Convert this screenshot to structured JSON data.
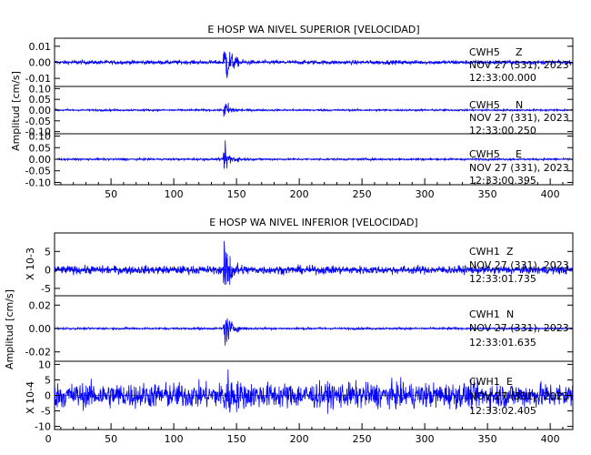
{
  "chart_data": [
    {
      "type": "line",
      "title": "E HOSP WA NIVEL SUPERIOR [VELOCIDAD]",
      "ylabel": "Amplitud [cm/s]",
      "xlabel": "",
      "xlim": [
        5,
        418
      ],
      "x_ticks": [
        "50",
        "100",
        "150",
        "200",
        "250",
        "300",
        "350",
        "400"
      ],
      "event_time_x": 140,
      "panels": [
        {
          "station": "CWH5",
          "component": "Z",
          "date": "NOV 27 (331), 2023",
          "start_time": "12:33:00.000",
          "ylim": [
            -0.015,
            0.015
          ],
          "y_ticks": [
            "0.01",
            "0.00",
            "-0.01"
          ],
          "y_tick_values": [
            0.01,
            0.0,
            -0.01
          ],
          "noise_amplitude": 0.0011,
          "peak_amplitude": 0.017,
          "color": "#0000ff"
        },
        {
          "station": "CWH5",
          "component": "N",
          "date": "NOV 27 (331), 2023",
          "start_time": "12:33:00.250",
          "ylim": [
            -0.11,
            0.11
          ],
          "y_ticks": [
            "0.10",
            "0.05",
            "0.00",
            "-0.05",
            "-0.10"
          ],
          "y_tick_values": [
            0.1,
            0.05,
            0.0,
            -0.05,
            -0.1
          ],
          "noise_amplitude": 0.004,
          "peak_amplitude": 0.05,
          "color": "#0000ff"
        },
        {
          "station": "CWH5",
          "component": "E",
          "date": "NOV 27 (331), 2023",
          "start_time": "12:33:00.395",
          "ylim": [
            -0.11,
            0.11
          ],
          "y_ticks": [
            "0.10",
            "0.05",
            "0.00",
            "-0.05",
            "-0.10"
          ],
          "y_tick_values": [
            0.1,
            0.05,
            0.0,
            -0.05,
            -0.1
          ],
          "noise_amplitude": 0.004,
          "peak_amplitude": 0.065,
          "color": "#0000ff"
        }
      ]
    },
    {
      "type": "line",
      "title": "E HOSP WA NIVEL INFERIOR [VELOCIDAD]",
      "ylabel": "Amplitud [cm/s]",
      "xlabel": "",
      "xlim": [
        5,
        418
      ],
      "x_ticks": [
        "0",
        "50",
        "100",
        "150",
        "200",
        "250",
        "300",
        "350",
        "400"
      ],
      "event_time_x": 140,
      "panels": [
        {
          "station": "CWH1",
          "component": "Z",
          "date": "NOV 27 (331), 2023",
          "start_time": "12:33:01.735",
          "scale_label": "X 10-3",
          "ylim": [
            -7,
            10
          ],
          "y_ticks": [
            "5",
            "0",
            "-5"
          ],
          "y_tick_values": [
            5,
            0,
            -5
          ],
          "noise_amplitude": 1.0,
          "peak_amplitude": 9,
          "color": "#0000ff"
        },
        {
          "station": "CWH1",
          "component": "N",
          "date": "NOV 27 (331), 2023",
          "start_time": "12:33:01.635",
          "ylim": [
            -0.028,
            0.028
          ],
          "y_ticks": [
            "0.02",
            "0.00",
            "-0.02"
          ],
          "y_tick_values": [
            0.02,
            0.0,
            -0.02
          ],
          "noise_amplitude": 0.0008,
          "peak_amplitude": 0.018,
          "color": "#0000ff"
        },
        {
          "station": "CWH1",
          "component": "E",
          "date": "NOV 27 (331), 2023",
          "start_time": "12:33:02.405",
          "scale_label": "X 10-4",
          "ylim": [
            -11,
            11
          ],
          "y_ticks": [
            "10",
            "5",
            "0",
            "-5",
            "-10"
          ],
          "y_tick_values": [
            10,
            5,
            0,
            -5,
            -10
          ],
          "noise_amplitude": 3.6,
          "peak_amplitude": 8,
          "color": "#0000ff"
        }
      ]
    }
  ]
}
